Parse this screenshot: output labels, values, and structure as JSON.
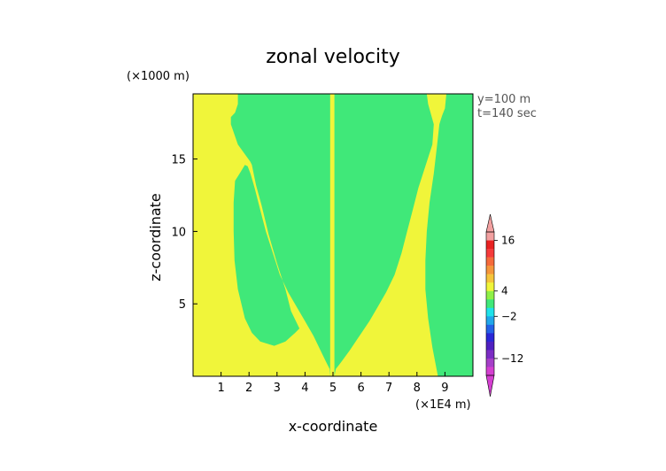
{
  "chart_data": {
    "type": "heatmap",
    "title": "zonal velocity",
    "xlabel": "x-coordinate",
    "ylabel": "z-coordinate",
    "x_scale_label": "(×1E4 m)",
    "y_scale_label": "(×1000 m)",
    "xlim": [
      0,
      10
    ],
    "ylim": [
      0,
      19.5
    ],
    "x_ticks": [
      1,
      2,
      3,
      4,
      5,
      6,
      7,
      8,
      9
    ],
    "y_ticks": [
      5,
      10,
      15
    ],
    "annotations": [
      "y=100 m",
      "t=140 sec"
    ],
    "background_color": "#f0f53a",
    "regions": [
      {
        "name": "green-left",
        "color": "#40e879",
        "polygon": [
          [
            4.9,
            0
          ],
          [
            4.88,
            0.5
          ],
          [
            4.75,
            1.0
          ],
          [
            4.55,
            1.8
          ],
          [
            4.3,
            2.8
          ],
          [
            4.0,
            3.8
          ],
          [
            3.7,
            4.8
          ],
          [
            3.4,
            5.8
          ],
          [
            3.1,
            7.0
          ],
          [
            2.85,
            8.5
          ],
          [
            2.6,
            10.0
          ],
          [
            2.4,
            11.5
          ],
          [
            2.2,
            13.0
          ],
          [
            2.05,
            14.0
          ],
          [
            1.95,
            14.5
          ],
          [
            1.85,
            14.6
          ],
          [
            1.7,
            14.1
          ],
          [
            1.5,
            13.5
          ],
          [
            1.45,
            12.0
          ],
          [
            1.45,
            10.0
          ],
          [
            1.48,
            8.0
          ],
          [
            1.6,
            6.0
          ],
          [
            1.85,
            4.0
          ],
          [
            2.1,
            3.0
          ],
          [
            2.4,
            2.4
          ],
          [
            2.9,
            2.1
          ],
          [
            3.3,
            2.4
          ],
          [
            3.65,
            3.0
          ],
          [
            3.8,
            3.3
          ],
          [
            3.5,
            4.5
          ],
          [
            3.3,
            6.0
          ],
          [
            3.0,
            7.8
          ],
          [
            2.7,
            9.8
          ],
          [
            2.45,
            11.8
          ],
          [
            2.25,
            13.2
          ],
          [
            2.1,
            14.6
          ],
          [
            2.05,
            14.8
          ],
          [
            1.6,
            16.0
          ],
          [
            1.35,
            17.4
          ],
          [
            1.35,
            17.9
          ],
          [
            1.5,
            18.2
          ],
          [
            1.6,
            18.8
          ],
          [
            1.6,
            19.5
          ],
          [
            4.9,
            19.5
          ]
        ]
      },
      {
        "name": "green-right",
        "color": "#40e879",
        "polygon": [
          [
            5.05,
            0
          ],
          [
            5.1,
            0.5
          ],
          [
            5.3,
            1.0
          ],
          [
            5.6,
            1.8
          ],
          [
            5.95,
            2.8
          ],
          [
            6.3,
            3.8
          ],
          [
            6.6,
            4.8
          ],
          [
            6.9,
            5.8
          ],
          [
            7.2,
            7.0
          ],
          [
            7.45,
            8.5
          ],
          [
            7.65,
            10.0
          ],
          [
            7.85,
            11.5
          ],
          [
            8.05,
            13.0
          ],
          [
            8.3,
            14.5
          ],
          [
            8.55,
            16.0
          ],
          [
            8.6,
            17.4
          ],
          [
            8.5,
            18.1
          ],
          [
            8.4,
            18.8
          ],
          [
            8.35,
            19.5
          ],
          [
            5.05,
            19.5
          ]
        ]
      },
      {
        "name": "green-right-edge",
        "color": "#40e879",
        "polygon": [
          [
            10,
            0
          ],
          [
            10,
            19.5
          ],
          [
            9.05,
            19.5
          ],
          [
            9.0,
            18.5
          ],
          [
            8.9,
            18.0
          ],
          [
            8.8,
            17.4
          ],
          [
            8.72,
            16.0
          ],
          [
            8.6,
            14.0
          ],
          [
            8.45,
            12.0
          ],
          [
            8.35,
            10.0
          ],
          [
            8.3,
            8.0
          ],
          [
            8.3,
            6.0
          ],
          [
            8.4,
            4.0
          ],
          [
            8.55,
            2.0
          ],
          [
            8.7,
            0.5
          ],
          [
            8.75,
            0
          ]
        ]
      }
    ],
    "colorbar": {
      "levels": [
        -12,
        -2,
        4,
        16
      ],
      "colors": [
        "#d43fd0",
        "#a63fc8",
        "#7c2dc4",
        "#4f20c0",
        "#2a27d6",
        "#2462e6",
        "#21a7ea",
        "#1fe2ea",
        "#40e879",
        "#8ef047",
        "#f0f53a",
        "#f5c43b",
        "#f5963b",
        "#f56a3b",
        "#f53b3b",
        "#e82222",
        "#f2a0a0"
      ]
    }
  }
}
